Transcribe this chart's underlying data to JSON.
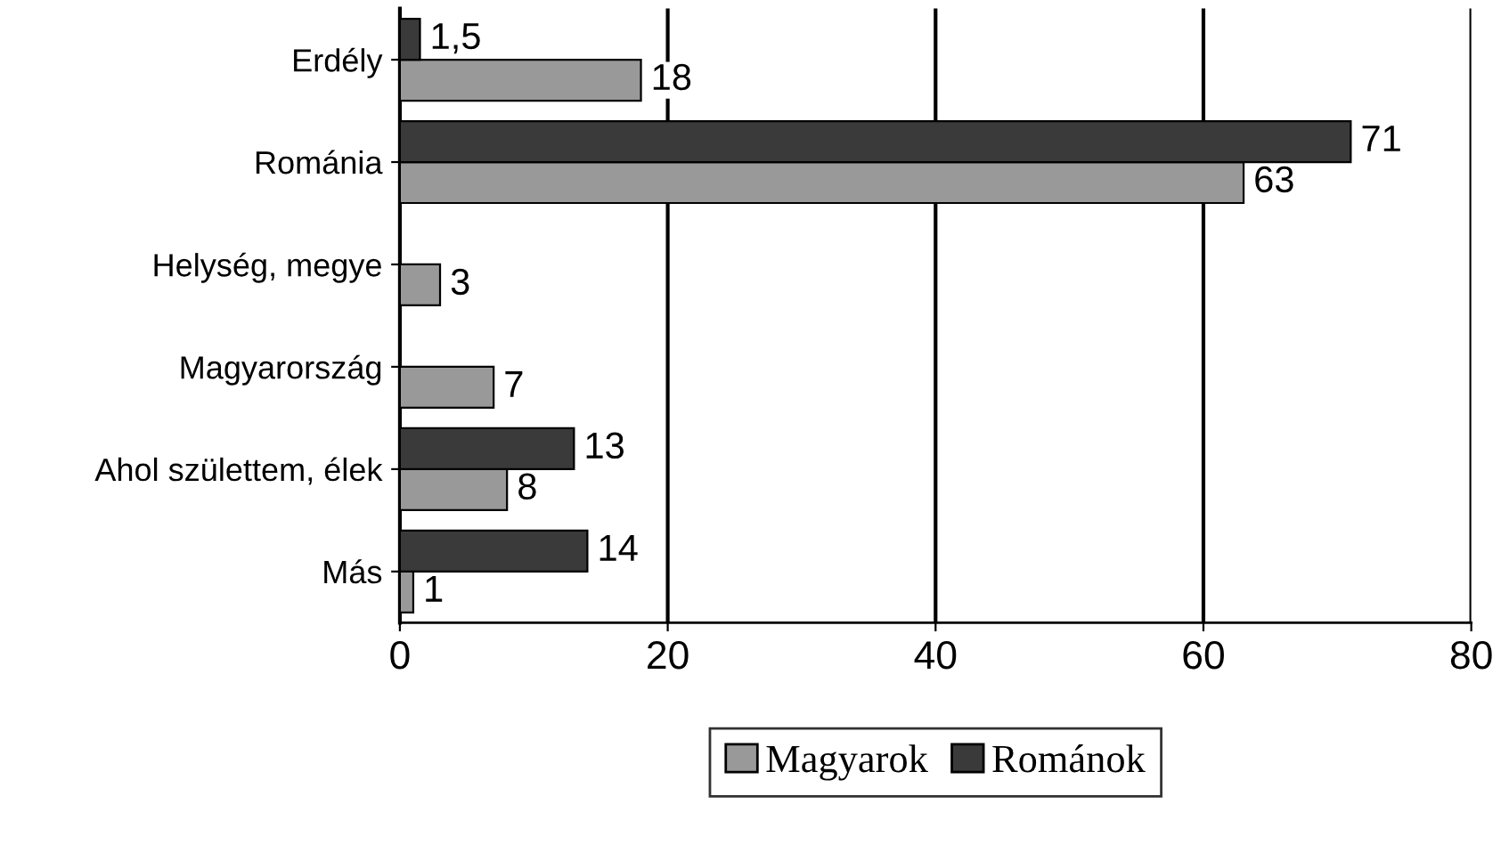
{
  "chart_data": {
    "type": "bar",
    "orientation": "horizontal",
    "categories": [
      "Erdély",
      "Románia",
      "Helység, megye",
      "Magyarország",
      "Ahol születtem, élek",
      "Más"
    ],
    "series": [
      {
        "name": "Magyarok",
        "color": "#999999",
        "values": [
          18,
          63,
          3,
          7,
          8,
          1
        ],
        "value_labels": [
          "18",
          "63",
          "3",
          "7",
          "8",
          "1"
        ]
      },
      {
        "name": "Románok",
        "color": "#3a3a3a",
        "values": [
          1.5,
          71,
          null,
          null,
          13,
          14
        ],
        "value_labels": [
          "1,5",
          "71",
          null,
          null,
          "13",
          "14"
        ]
      }
    ],
    "xlim": [
      0,
      80
    ],
    "xticks": [
      0,
      20,
      40,
      60,
      80
    ],
    "grid": "x",
    "legend": "bottom"
  }
}
